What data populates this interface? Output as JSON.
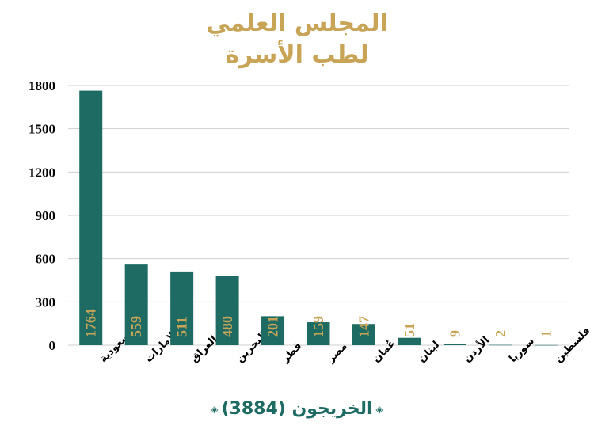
{
  "header": {
    "title_line1": "المجلس العلمي",
    "title_line2": "لطب الأسرة"
  },
  "footer": {
    "text": "الخريجون (3884)",
    "ornament": "diamond-icon"
  },
  "colors": {
    "title": "#c8a456",
    "bar": "#1e6b64",
    "value_label": "#c8a456",
    "footer": "#1e6b64",
    "grid": "#cfcfcf",
    "axis_text": "#000000"
  },
  "chart_data": {
    "type": "bar",
    "categories": [
      "السعودية",
      "الإمارات",
      "العراق",
      "البحرين",
      "قطر",
      "مصر",
      "عُمان",
      "لبنان",
      "الأردن",
      "سوريا",
      "فلسطين"
    ],
    "values": [
      1764,
      559,
      511,
      480,
      201,
      159,
      147,
      51,
      9,
      2,
      1
    ],
    "ylim": [
      0,
      1800
    ],
    "yticks": [
      0,
      300,
      600,
      900,
      1200,
      1500,
      1800
    ],
    "grid": true,
    "legend": "none"
  }
}
